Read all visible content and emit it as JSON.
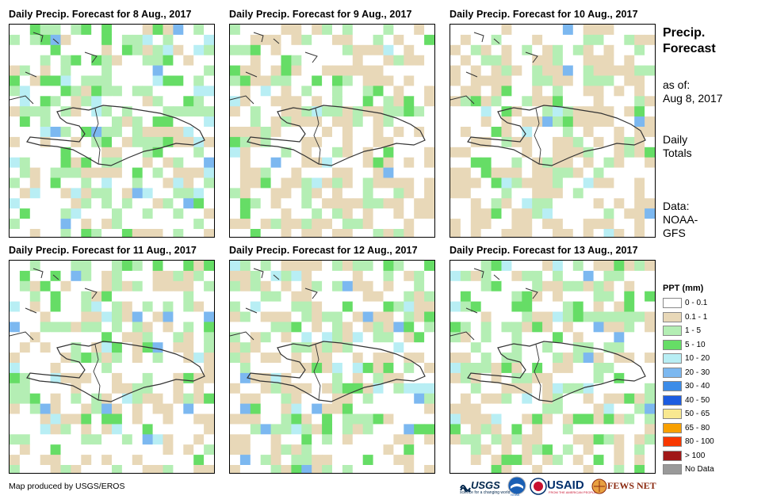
{
  "panels": [
    {
      "title": "Daily Precip. Forecast for 8 Aug., 2017",
      "wet": 0.6,
      "intensity": 1.0,
      "seed": 11
    },
    {
      "title": "Daily Precip. Forecast for 9 Aug., 2017",
      "wet": 0.38,
      "intensity": 0.45,
      "seed": 23
    },
    {
      "title": "Daily Precip. Forecast for 10 Aug., 2017",
      "wet": 0.35,
      "intensity": 0.4,
      "seed": 37
    },
    {
      "title": "Daily Precip. Forecast for 11 Aug., 2017",
      "wet": 0.55,
      "intensity": 0.75,
      "seed": 41
    },
    {
      "title": "Daily Precip. Forecast for 12 Aug., 2017",
      "wet": 0.48,
      "intensity": 0.65,
      "seed": 53
    },
    {
      "title": "Daily Precip. Forecast for 13 Aug., 2017",
      "wet": 0.45,
      "intensity": 0.6,
      "seed": 67
    }
  ],
  "side": {
    "title_line1": "Precip.",
    "title_line2": "Forecast",
    "asof_label": "as of:",
    "asof_date": "Aug 8, 2017",
    "daily_line1": "Daily",
    "daily_line2": "Totals",
    "data_line1": "Data:",
    "data_line2": "NOAA-",
    "data_line3": "GFS"
  },
  "legend": {
    "title": "PPT (mm)",
    "items": [
      {
        "label": "0 - 0.1",
        "color": "#ffffff"
      },
      {
        "label": "0.1 - 1",
        "color": "#e8d8b8"
      },
      {
        "label": "1 - 5",
        "color": "#b4eeb4"
      },
      {
        "label": "5 - 10",
        "color": "#66dd66"
      },
      {
        "label": "10 - 20",
        "color": "#b8eef4"
      },
      {
        "label": "20 - 30",
        "color": "#7cb8f0"
      },
      {
        "label": "30 - 40",
        "color": "#3c8ce8"
      },
      {
        "label": "40 - 50",
        "color": "#1c5ce0"
      },
      {
        "label": "50 - 65",
        "color": "#f8e890"
      },
      {
        "label": "65 - 80",
        "color": "#f8a000"
      },
      {
        "label": "80 - 100",
        "color": "#f83800"
      },
      {
        "label": "> 100",
        "color": "#a01818"
      },
      {
        "label": "No Data",
        "color": "#999999"
      }
    ]
  },
  "credit": "Map produced by USGS/EROS",
  "logos": {
    "usgs": "USGS",
    "usgs_tagline": "science for a changing world",
    "noaa": "NOAA",
    "usaid": "USAID",
    "usaid_tagline": "FROM THE AMERICAN PEOPLE",
    "fewsnet": "FEWS NET"
  }
}
